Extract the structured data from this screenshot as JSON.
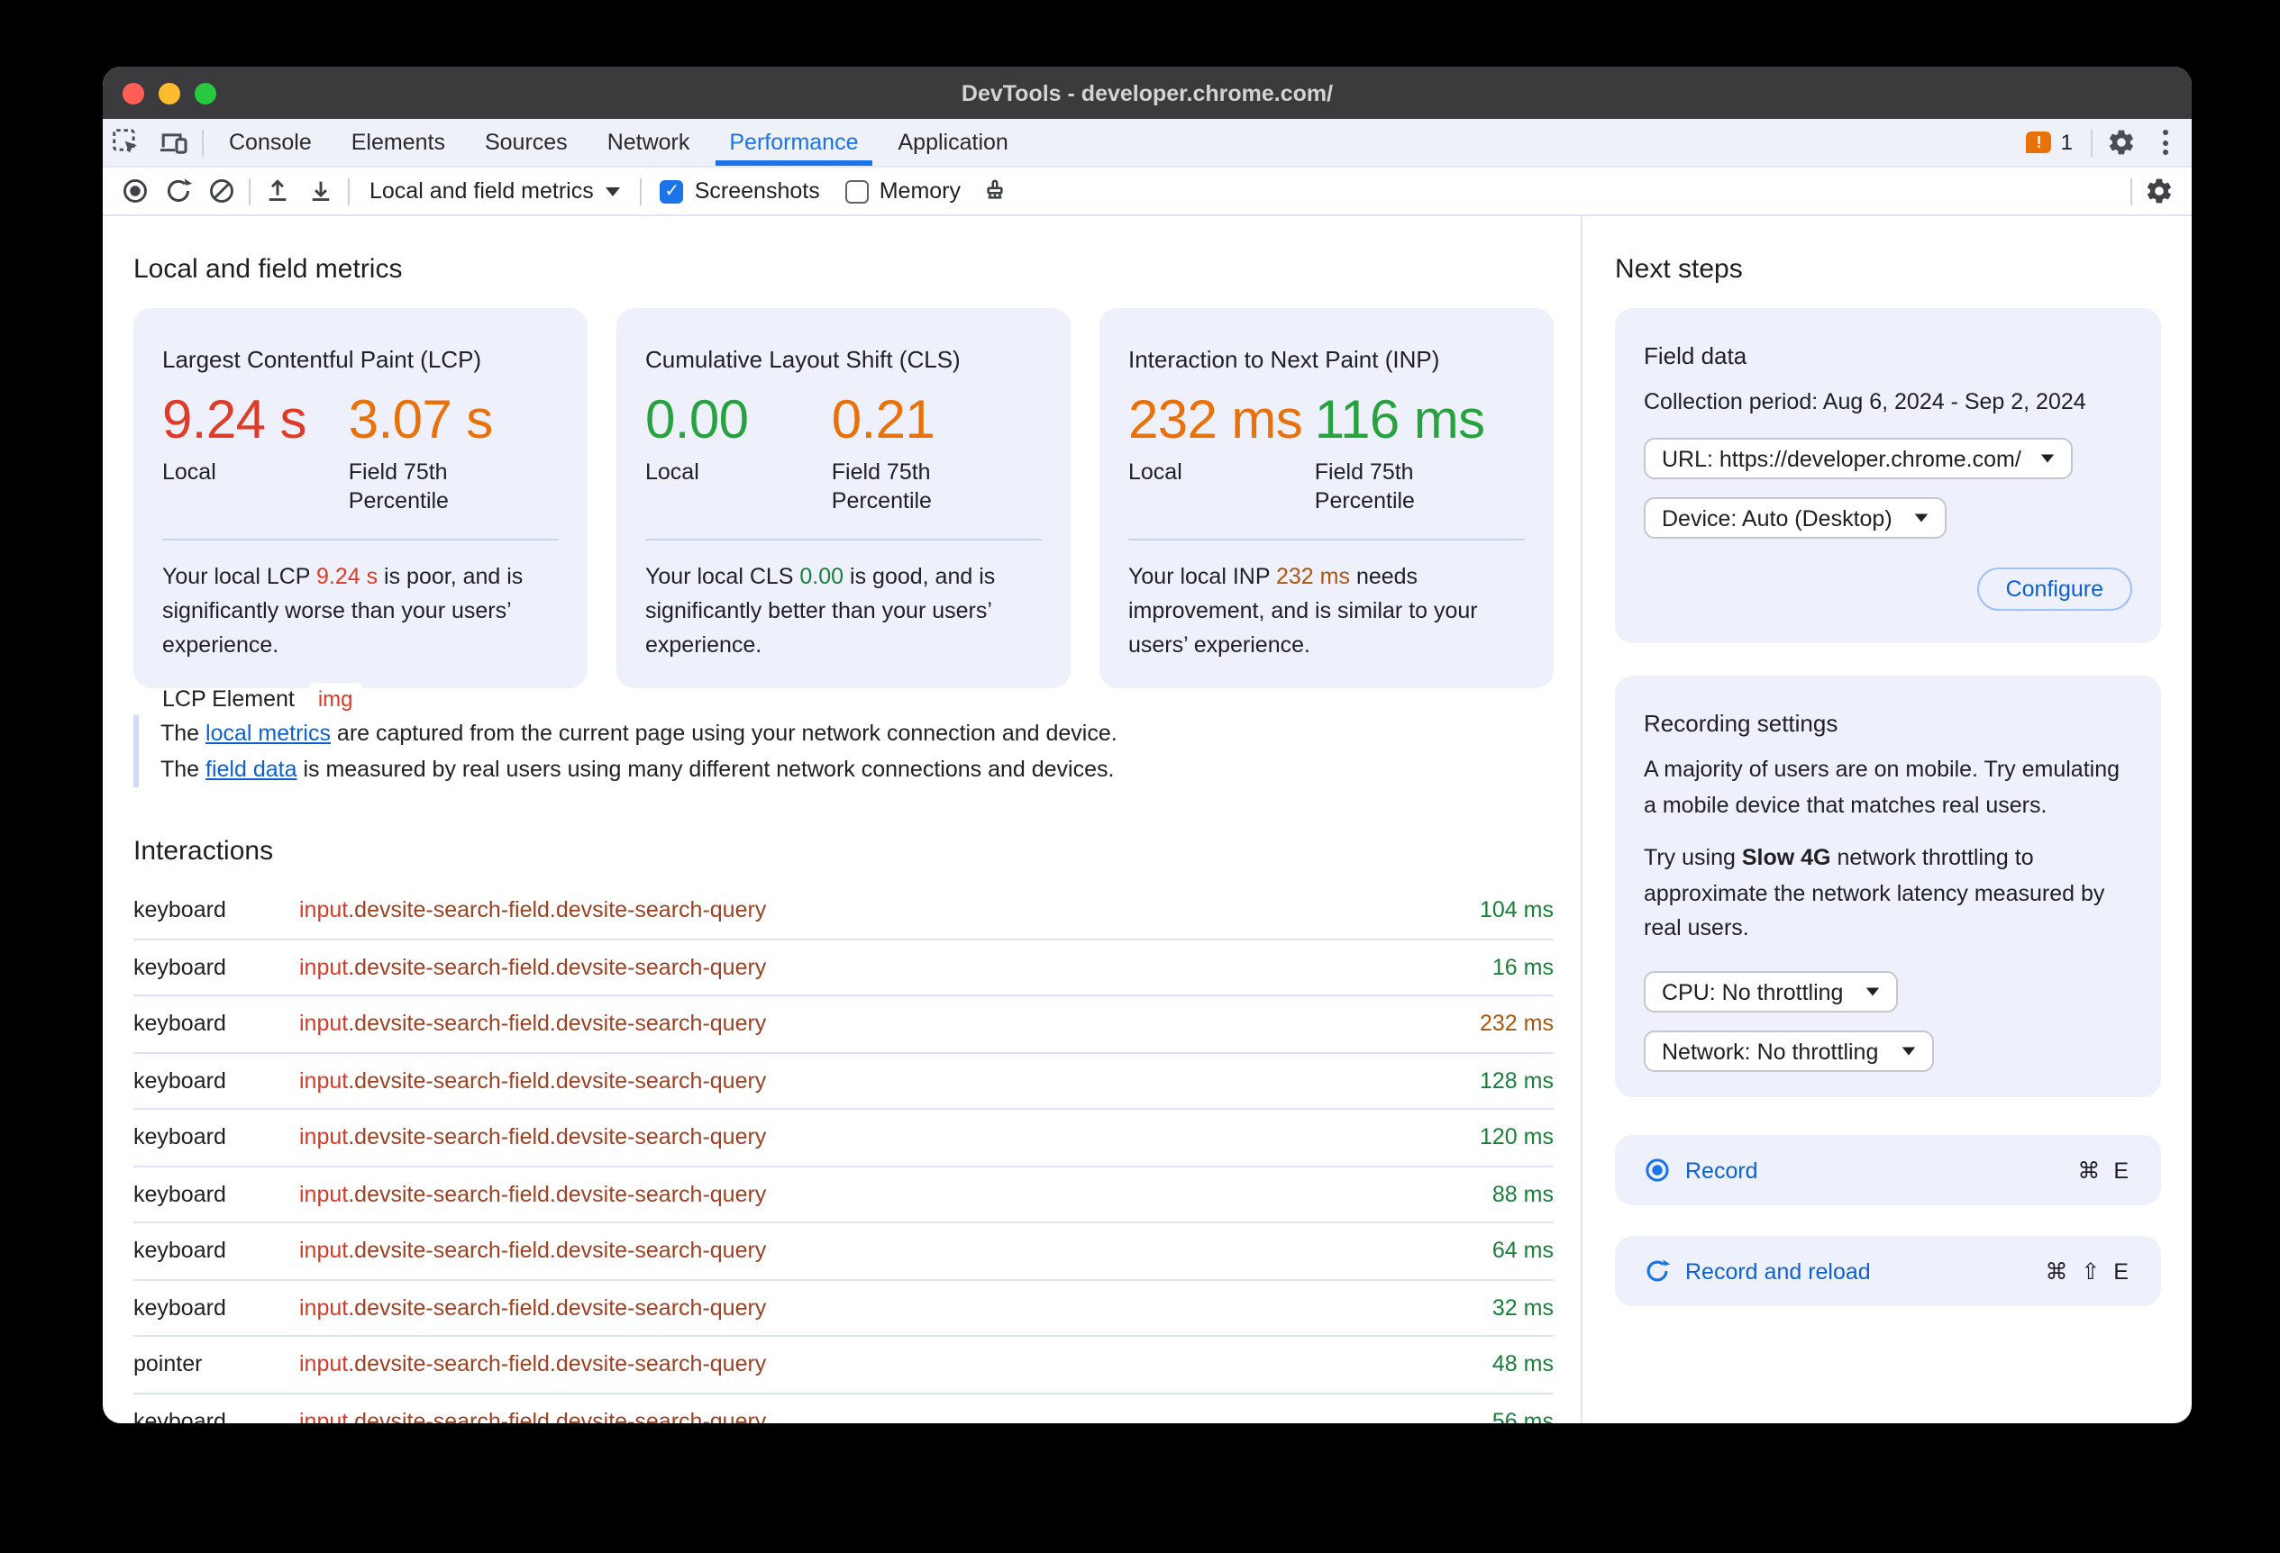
{
  "window": {
    "title": "DevTools - developer.chrome.com/"
  },
  "tabs": [
    {
      "label": "Console"
    },
    {
      "label": "Elements"
    },
    {
      "label": "Sources"
    },
    {
      "label": "Network"
    },
    {
      "label": "Performance",
      "active": true
    },
    {
      "label": "Application"
    }
  ],
  "tabbar": {
    "issues_count": "1"
  },
  "toolbar": {
    "view_select": "Local and field metrics",
    "screenshots_label": "Screenshots",
    "screenshots_checked": true,
    "memory_label": "Memory",
    "memory_checked": false
  },
  "main": {
    "heading": "Local and field metrics",
    "cards": [
      {
        "title": "Largest Contentful Paint (LCP)",
        "local_value": "9.24 s",
        "local_label": "Local",
        "field_value": "3.07 s",
        "field_label": "Field 75th Percentile",
        "desc_before": "Your local LCP ",
        "desc_value": "9.24 s",
        "desc_after": " is poor, and is significantly worse than your users’ experience.",
        "element_label": "LCP Element",
        "element_value": "img"
      },
      {
        "title": "Cumulative Layout Shift (CLS)",
        "local_value": "0.00",
        "local_label": "Local",
        "field_value": "0.21",
        "field_label": "Field 75th Percentile",
        "desc_before": "Your local CLS ",
        "desc_value": "0.00",
        "desc_after": " is good, and is significantly better than your users’ experience."
      },
      {
        "title": "Interaction to Next Paint (INP)",
        "local_value": "232 ms",
        "local_label": "Local",
        "field_value": "116 ms",
        "field_label": "Field 75th Percentile",
        "desc_before": "Your local INP ",
        "desc_value": "232 ms",
        "desc_after": " needs improvement, and is similar to your users’ experience."
      }
    ],
    "note": {
      "line1_before": "The ",
      "line1_link": "local metrics",
      "line1_after": " are captured from the current page using your network connection and device.",
      "line2_before": "The ",
      "line2_link": "field data",
      "line2_after": " is measured by real users using many different network connections and devices."
    }
  },
  "interactions": {
    "heading": "Interactions",
    "rows": [
      {
        "type": "keyboard",
        "selector_tag": "input",
        "selector_classes": ".devsite-search-field.devsite-search-query",
        "duration": "104 ms",
        "status": "good"
      },
      {
        "type": "keyboard",
        "selector_tag": "input",
        "selector_classes": ".devsite-search-field.devsite-search-query",
        "duration": "16 ms",
        "status": "good"
      },
      {
        "type": "keyboard",
        "selector_tag": "input",
        "selector_classes": ".devsite-search-field.devsite-search-query",
        "duration": "232 ms",
        "status": "needs-improvement"
      },
      {
        "type": "keyboard",
        "selector_tag": "input",
        "selector_classes": ".devsite-search-field.devsite-search-query",
        "duration": "128 ms",
        "status": "good"
      },
      {
        "type": "keyboard",
        "selector_tag": "input",
        "selector_classes": ".devsite-search-field.devsite-search-query",
        "duration": "120 ms",
        "status": "good"
      },
      {
        "type": "keyboard",
        "selector_tag": "input",
        "selector_classes": ".devsite-search-field.devsite-search-query",
        "duration": "88 ms",
        "status": "good"
      },
      {
        "type": "keyboard",
        "selector_tag": "input",
        "selector_classes": ".devsite-search-field.devsite-search-query",
        "duration": "64 ms",
        "status": "good"
      },
      {
        "type": "keyboard",
        "selector_tag": "input",
        "selector_classes": ".devsite-search-field.devsite-search-query",
        "duration": "32 ms",
        "status": "good"
      },
      {
        "type": "pointer",
        "selector_tag": "input",
        "selector_classes": ".devsite-search-field.devsite-search-query",
        "duration": "48 ms",
        "status": "good"
      },
      {
        "type": "keyboard",
        "selector_tag": "input",
        "selector_classes": ".devsite-search-field.devsite-search-query",
        "duration": "56 ms",
        "status": "good"
      }
    ]
  },
  "sidebar": {
    "heading": "Next steps",
    "field_data": {
      "title": "Field data",
      "collection_label": "Collection period:",
      "collection_value": "Aug 6, 2024 - Sep 2, 2024",
      "url_select": "URL: https://developer.chrome.com/",
      "device_select": "Device: Auto (Desktop)",
      "configure_label": "Configure"
    },
    "recording": {
      "title": "Recording settings",
      "p1": "A majority of users are on mobile. Try emulating a mobile device that matches real users.",
      "p2_before": "Try using ",
      "p2_bold": "Slow 4G",
      "p2_after": " network throttling to approximate the network latency measured by real users.",
      "cpu_select": "CPU: No throttling",
      "network_select": "Network: No throttling"
    },
    "record": {
      "label": "Record",
      "shortcut": "⌘ E"
    },
    "record_reload": {
      "label": "Record and reload",
      "shortcut": "⌘ ⇧ E"
    }
  },
  "colors": {
    "accent_blue": "#1a73e8",
    "link_blue": "#0e62cf",
    "good_green_large": "#27a23f",
    "row_good_green": "#188038",
    "poor_red": "#df3b27",
    "ni_orange": "#e8710a",
    "ni_brown": "#a9560f",
    "selector_tag_red": "#d93a25",
    "selector_class_brown": "#9c4121",
    "issues_orange": "#e8710a",
    "traffic_red": "#ff5f57",
    "traffic_yellow": "#febc2e",
    "traffic_green": "#28c840"
  }
}
